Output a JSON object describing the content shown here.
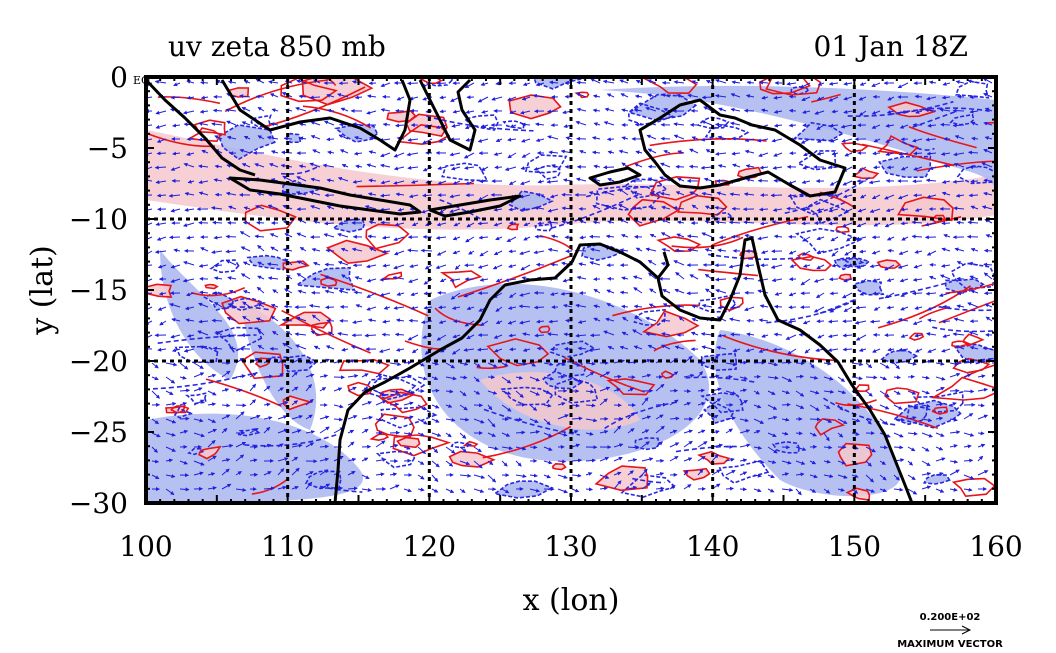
{
  "header": {
    "title_left": "uv zeta 850 mb",
    "title_right": "01 Jan 18Z"
  },
  "axes": {
    "xlabel": "x (lon)",
    "ylabel": "y (lat)",
    "xlim": [
      100,
      160
    ],
    "ylim": [
      -30,
      0
    ],
    "xticks": [
      100,
      110,
      120,
      130,
      140,
      150,
      160
    ],
    "yticks": [
      0,
      -5,
      -10,
      -15,
      -20,
      -25,
      -30
    ],
    "ytick_labels": [
      "0",
      "−5",
      "−10",
      "−15",
      "−20",
      "−25",
      "−30"
    ],
    "gridlines_lon": [
      110,
      120,
      130,
      140,
      150
    ],
    "gridlines_lat": [
      -10,
      -20
    ],
    "corner_tag": "EQ"
  },
  "legend": {
    "vector_value": "0.200E+02",
    "vector_label": "MAXIMUM VECTOR"
  },
  "colors": {
    "positive_contour": "#e8141b",
    "positive_fill": "#f5c8cc",
    "negative_contour": "#2828e0",
    "negative_fill": "#a9b6ee",
    "vectors": "#1f1fe0",
    "coastline": "#000000",
    "grid": "#000000"
  },
  "map": {
    "type": "vorticity-wind-map",
    "coastlines": [
      "New Guinea",
      "Australia",
      "Sumatra",
      "Java",
      "Borneo",
      "Sulawesi",
      "Timor"
    ]
  }
}
